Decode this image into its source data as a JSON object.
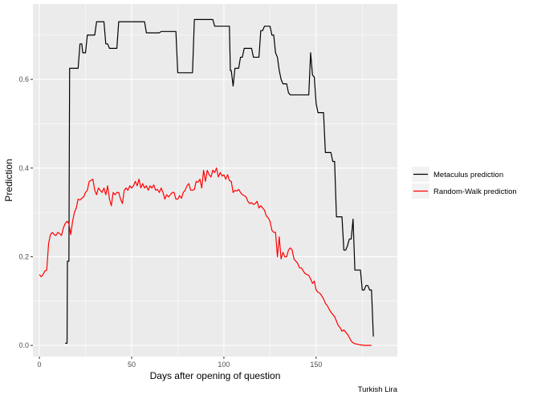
{
  "chart_data": {
    "type": "line",
    "xlabel": "Days after opening of question",
    "ylabel": "Prediction",
    "caption": "Turkish Lira",
    "xlim": [
      -3.5,
      194
    ],
    "ylim": [
      -0.025,
      0.77
    ],
    "x_ticks": [
      0,
      50,
      100,
      150
    ],
    "y_ticks": [
      0.0,
      0.2,
      0.4,
      0.6
    ],
    "y_tick_labels": [
      "0.0",
      "0.2",
      "0.4",
      "0.6"
    ],
    "grid": true,
    "legend_position": "right",
    "series": [
      {
        "name": "Metaculus prediction",
        "color": "#000000",
        "points": [
          [
            14,
            0.005
          ],
          [
            15,
            0.005
          ],
          [
            15.2,
            0.19
          ],
          [
            16,
            0.19
          ],
          [
            16.4,
            0.625
          ],
          [
            21,
            0.625
          ],
          [
            22,
            0.68
          ],
          [
            23,
            0.68
          ],
          [
            23.5,
            0.66
          ],
          [
            25,
            0.66
          ],
          [
            26,
            0.7
          ],
          [
            29,
            0.7
          ],
          [
            30,
            0.7
          ],
          [
            31,
            0.73
          ],
          [
            35,
            0.73
          ],
          [
            36,
            0.68
          ],
          [
            37,
            0.68
          ],
          [
            38,
            0.67
          ],
          [
            42,
            0.67
          ],
          [
            43,
            0.73
          ],
          [
            48,
            0.73
          ],
          [
            49,
            0.73
          ],
          [
            50,
            0.73
          ],
          [
            51,
            0.73
          ],
          [
            57,
            0.73
          ],
          [
            58,
            0.705
          ],
          [
            65,
            0.705
          ],
          [
            66,
            0.708
          ],
          [
            74,
            0.708
          ],
          [
            75,
            0.615
          ],
          [
            83,
            0.615
          ],
          [
            84,
            0.735
          ],
          [
            94,
            0.735
          ],
          [
            95,
            0.72
          ],
          [
            103,
            0.72
          ],
          [
            103.5,
            0.62
          ],
          [
            104,
            0.62
          ],
          [
            105,
            0.585
          ],
          [
            106,
            0.625
          ],
          [
            108,
            0.625
          ],
          [
            109,
            0.65
          ],
          [
            110,
            0.65
          ],
          [
            111,
            0.67
          ],
          [
            115,
            0.67
          ],
          [
            116,
            0.65
          ],
          [
            119,
            0.65
          ],
          [
            120,
            0.71
          ],
          [
            121,
            0.71
          ],
          [
            122,
            0.72
          ],
          [
            125,
            0.72
          ],
          [
            126,
            0.7
          ],
          [
            127,
            0.7
          ],
          [
            128,
            0.66
          ],
          [
            129,
            0.65
          ],
          [
            130,
            0.62
          ],
          [
            131,
            0.6
          ],
          [
            132,
            0.59
          ],
          [
            134,
            0.59
          ],
          [
            135,
            0.57
          ],
          [
            136,
            0.565
          ],
          [
            145,
            0.565
          ],
          [
            146,
            0.565
          ],
          [
            147,
            0.66
          ],
          [
            148,
            0.61
          ],
          [
            149,
            0.605
          ],
          [
            150,
            0.545
          ],
          [
            151,
            0.525
          ],
          [
            154,
            0.525
          ],
          [
            155,
            0.435
          ],
          [
            158,
            0.435
          ],
          [
            159,
            0.415
          ],
          [
            160,
            0.415
          ],
          [
            161,
            0.29
          ],
          [
            164,
            0.29
          ],
          [
            165,
            0.215
          ],
          [
            166,
            0.215
          ],
          [
            167,
            0.225
          ],
          [
            168,
            0.24
          ],
          [
            169,
            0.24
          ],
          [
            170,
            0.285
          ],
          [
            171,
            0.17
          ],
          [
            174,
            0.17
          ],
          [
            175,
            0.125
          ],
          [
            176,
            0.125
          ],
          [
            177,
            0.135
          ],
          [
            178,
            0.135
          ],
          [
            179,
            0.125
          ],
          [
            180,
            0.125
          ],
          [
            181,
            0.02
          ]
        ]
      },
      {
        "name": "Random-Walk prediction",
        "color": "#ff0000",
        "points": [
          [
            0,
            0.16
          ],
          [
            1,
            0.155
          ],
          [
            2,
            0.16
          ],
          [
            3,
            0.168
          ],
          [
            4,
            0.17
          ],
          [
            5,
            0.23
          ],
          [
            6,
            0.25
          ],
          [
            7,
            0.255
          ],
          [
            8,
            0.25
          ],
          [
            9,
            0.248
          ],
          [
            10,
            0.255
          ],
          [
            11,
            0.252
          ],
          [
            12,
            0.248
          ],
          [
            13,
            0.265
          ],
          [
            14,
            0.275
          ],
          [
            15,
            0.28
          ],
          [
            16,
            0.275
          ],
          [
            17,
            0.25
          ],
          [
            18,
            0.28
          ],
          [
            19,
            0.3
          ],
          [
            20,
            0.31
          ],
          [
            21,
            0.33
          ],
          [
            22,
            0.328
          ],
          [
            23,
            0.332
          ],
          [
            24,
            0.335
          ],
          [
            25,
            0.345
          ],
          [
            26,
            0.35
          ],
          [
            27,
            0.37
          ],
          [
            28,
            0.372
          ],
          [
            29,
            0.375
          ],
          [
            30,
            0.35
          ],
          [
            31,
            0.34
          ],
          [
            32,
            0.355
          ],
          [
            33,
            0.35
          ],
          [
            34,
            0.345
          ],
          [
            35,
            0.355
          ],
          [
            36,
            0.34
          ],
          [
            37,
            0.36
          ],
          [
            38,
            0.33
          ],
          [
            39,
            0.315
          ],
          [
            40,
            0.345
          ],
          [
            41,
            0.34
          ],
          [
            42,
            0.345
          ],
          [
            43,
            0.345
          ],
          [
            44,
            0.33
          ],
          [
            45,
            0.32
          ],
          [
            46,
            0.35
          ],
          [
            47,
            0.355
          ],
          [
            48,
            0.35
          ],
          [
            49,
            0.36
          ],
          [
            50,
            0.355
          ],
          [
            51,
            0.36
          ],
          [
            52,
            0.37
          ],
          [
            53,
            0.36
          ],
          [
            54,
            0.375
          ],
          [
            55,
            0.355
          ],
          [
            56,
            0.365
          ],
          [
            57,
            0.355
          ],
          [
            58,
            0.36
          ],
          [
            59,
            0.35
          ],
          [
            60,
            0.36
          ],
          [
            61,
            0.355
          ],
          [
            62,
            0.362
          ],
          [
            63,
            0.35
          ],
          [
            64,
            0.352
          ],
          [
            65,
            0.345
          ],
          [
            66,
            0.355
          ],
          [
            67,
            0.345
          ],
          [
            68,
            0.33
          ],
          [
            69,
            0.34
          ],
          [
            70,
            0.335
          ],
          [
            71,
            0.34
          ],
          [
            72,
            0.345
          ],
          [
            73,
            0.345
          ],
          [
            74,
            0.33
          ],
          [
            75,
            0.33
          ],
          [
            76,
            0.338
          ],
          [
            77,
            0.332
          ],
          [
            78,
            0.345
          ],
          [
            79,
            0.35
          ],
          [
            80,
            0.36
          ],
          [
            81,
            0.365
          ],
          [
            82,
            0.35
          ],
          [
            83,
            0.35
          ],
          [
            84,
            0.352
          ],
          [
            85,
            0.37
          ],
          [
            86,
            0.368
          ],
          [
            87,
            0.375
          ],
          [
            88,
            0.355
          ],
          [
            89,
            0.395
          ],
          [
            90,
            0.37
          ],
          [
            91,
            0.395
          ],
          [
            92,
            0.385
          ],
          [
            93,
            0.38
          ],
          [
            94,
            0.395
          ],
          [
            95,
            0.39
          ],
          [
            96,
            0.4
          ],
          [
            97,
            0.38
          ],
          [
            98,
            0.39
          ],
          [
            99,
            0.382
          ],
          [
            100,
            0.385
          ],
          [
            101,
            0.375
          ],
          [
            102,
            0.385
          ],
          [
            103,
            0.372
          ],
          [
            104,
            0.37
          ],
          [
            105,
            0.345
          ],
          [
            106,
            0.35
          ],
          [
            107,
            0.348
          ],
          [
            108,
            0.352
          ],
          [
            109,
            0.345
          ],
          [
            110,
            0.34
          ],
          [
            111,
            0.338
          ],
          [
            112,
            0.335
          ],
          [
            113,
            0.325
          ],
          [
            114,
            0.32
          ],
          [
            115,
            0.322
          ],
          [
            116,
            0.318
          ],
          [
            117,
            0.32
          ],
          [
            118,
            0.325
          ],
          [
            119,
            0.31
          ],
          [
            120,
            0.315
          ],
          [
            121,
            0.31
          ],
          [
            122,
            0.305
          ],
          [
            123,
            0.292
          ],
          [
            124,
            0.288
          ],
          [
            125,
            0.28
          ],
          [
            126,
            0.26
          ],
          [
            127,
            0.255
          ],
          [
            128,
            0.255
          ],
          [
            129,
            0.2
          ],
          [
            130,
            0.245
          ],
          [
            131,
            0.195
          ],
          [
            132,
            0.21
          ],
          [
            133,
            0.2
          ],
          [
            134,
            0.2
          ],
          [
            135,
            0.215
          ],
          [
            136,
            0.22
          ],
          [
            137,
            0.215
          ],
          [
            138,
            0.195
          ],
          [
            139,
            0.19
          ],
          [
            140,
            0.185
          ],
          [
            141,
            0.175
          ],
          [
            142,
            0.175
          ],
          [
            143,
            0.168
          ],
          [
            144,
            0.162
          ],
          [
            145,
            0.16
          ],
          [
            146,
            0.158
          ],
          [
            147,
            0.15
          ],
          [
            148,
            0.14
          ],
          [
            149,
            0.145
          ],
          [
            150,
            0.125
          ],
          [
            151,
            0.12
          ],
          [
            152,
            0.118
          ],
          [
            153,
            0.112
          ],
          [
            154,
            0.105
          ],
          [
            155,
            0.095
          ],
          [
            156,
            0.09
          ],
          [
            157,
            0.082
          ],
          [
            158,
            0.075
          ],
          [
            159,
            0.07
          ],
          [
            160,
            0.065
          ],
          [
            161,
            0.055
          ],
          [
            162,
            0.045
          ],
          [
            163,
            0.04
          ],
          [
            164,
            0.032
          ],
          [
            165,
            0.035
          ],
          [
            166,
            0.03
          ],
          [
            167,
            0.025
          ],
          [
            168,
            0.018
          ],
          [
            169,
            0.01
          ],
          [
            170,
            0.006
          ],
          [
            171,
            0.004
          ],
          [
            172,
            0.003
          ],
          [
            173,
            0.002
          ],
          [
            174,
            0.001
          ],
          [
            175,
            0.001
          ],
          [
            176,
            0.0
          ],
          [
            177,
            0.0
          ],
          [
            178,
            0.0
          ],
          [
            180,
            0.0
          ]
        ]
      }
    ]
  }
}
